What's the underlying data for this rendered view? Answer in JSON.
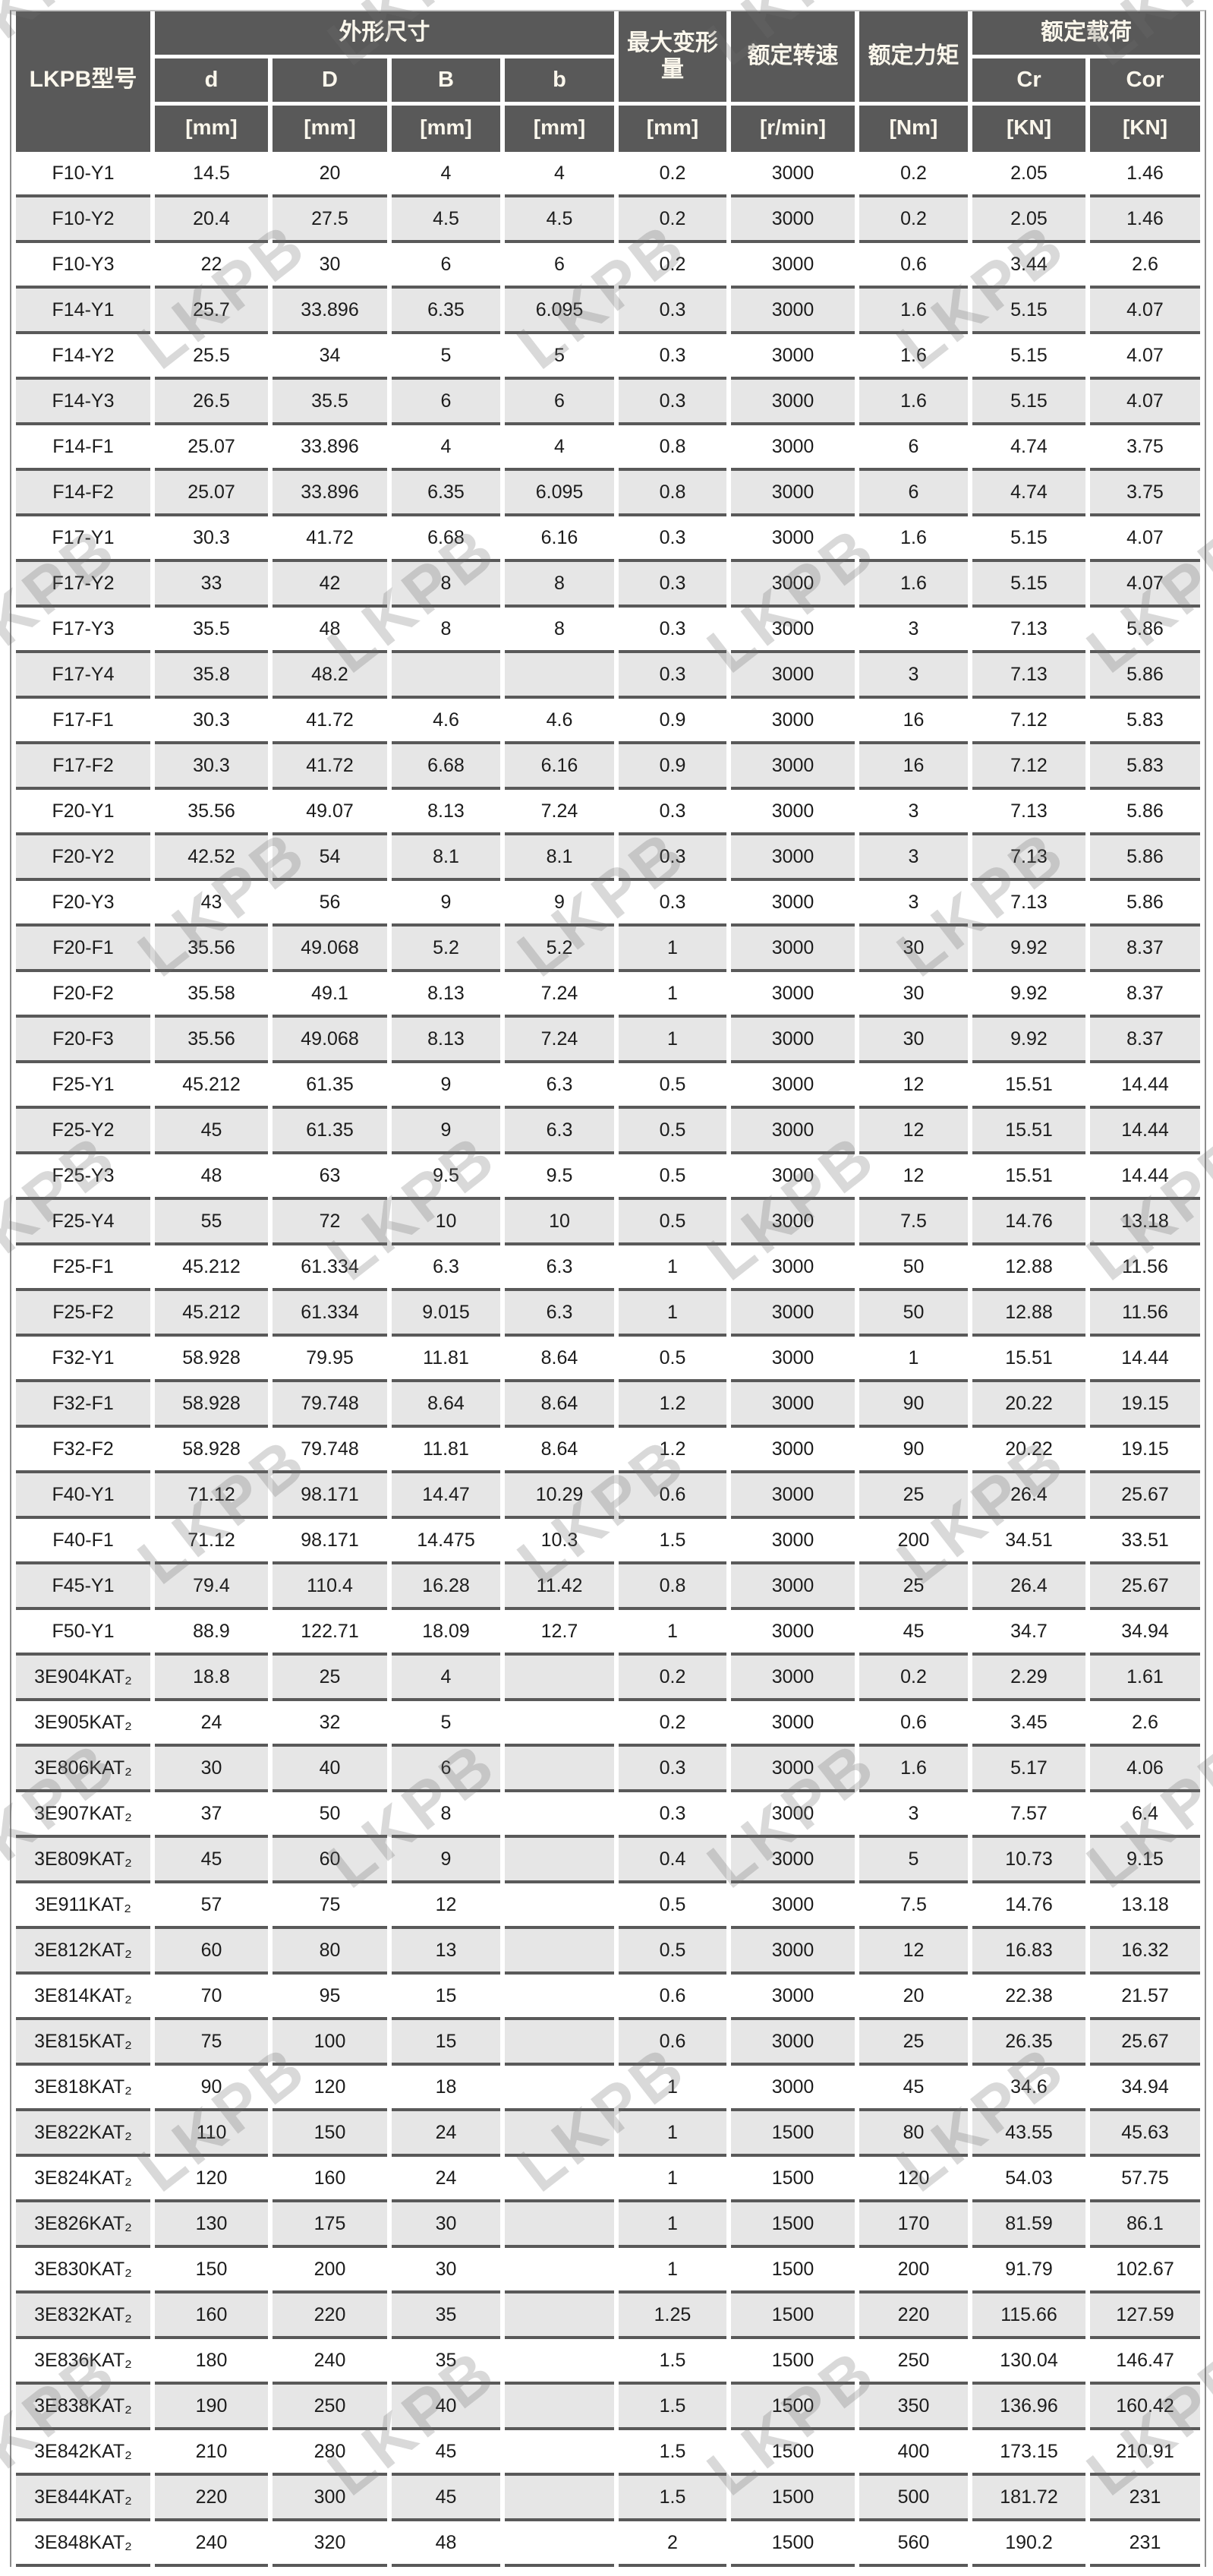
{
  "watermark": {
    "text": "LKPB"
  },
  "colors": {
    "header_bg": "#595959",
    "header_text": "#fbf7ec",
    "row_stripe": "#e6e6e6",
    "row_border": "#595959",
    "body_text": "#1c1c1c"
  },
  "table": {
    "header": {
      "model_col": "LKPB型号",
      "dim_group": "外形尺寸",
      "dim_cols": [
        "d",
        "D",
        "B",
        "b"
      ],
      "max_deform": "最大变形量",
      "rated_speed": "额定转速",
      "rated_torque": "额定力矩",
      "load_group": "额定载荷",
      "load_cols": [
        "Cr",
        "Cor"
      ],
      "units": [
        "[mm]",
        "[mm]",
        "[mm]",
        "[mm]",
        "[mm]",
        "[r/min]",
        "[Nm]",
        "[KN]",
        "[KN]"
      ]
    },
    "rows": [
      [
        "F10-Y1",
        "14.5",
        "20",
        "4",
        "4",
        "0.2",
        "3000",
        "0.2",
        "2.05",
        "1.46"
      ],
      [
        "F10-Y2",
        "20.4",
        "27.5",
        "4.5",
        "4.5",
        "0.2",
        "3000",
        "0.2",
        "2.05",
        "1.46"
      ],
      [
        "F10-Y3",
        "22",
        "30",
        "6",
        "6",
        "0.2",
        "3000",
        "0.6",
        "3.44",
        "2.6"
      ],
      [
        "F14-Y1",
        "25.7",
        "33.896",
        "6.35",
        "6.095",
        "0.3",
        "3000",
        "1.6",
        "5.15",
        "4.07"
      ],
      [
        "F14-Y2",
        "25.5",
        "34",
        "5",
        "5",
        "0.3",
        "3000",
        "1.6",
        "5.15",
        "4.07"
      ],
      [
        "F14-Y3",
        "26.5",
        "35.5",
        "6",
        "6",
        "0.3",
        "3000",
        "1.6",
        "5.15",
        "4.07"
      ],
      [
        "F14-F1",
        "25.07",
        "33.896",
        "4",
        "4",
        "0.8",
        "3000",
        "6",
        "4.74",
        "3.75"
      ],
      [
        "F14-F2",
        "25.07",
        "33.896",
        "6.35",
        "6.095",
        "0.8",
        "3000",
        "6",
        "4.74",
        "3.75"
      ],
      [
        "F17-Y1",
        "30.3",
        "41.72",
        "6.68",
        "6.16",
        "0.3",
        "3000",
        "1.6",
        "5.15",
        "4.07"
      ],
      [
        "F17-Y2",
        "33",
        "42",
        "8",
        "8",
        "0.3",
        "3000",
        "1.6",
        "5.15",
        "4.07"
      ],
      [
        "F17-Y3",
        "35.5",
        "48",
        "8",
        "8",
        "0.3",
        "3000",
        "3",
        "7.13",
        "5.86"
      ],
      [
        "F17-Y4",
        "35.8",
        "48.2",
        "",
        "",
        "0.3",
        "3000",
        "3",
        "7.13",
        "5.86"
      ],
      [
        "F17-F1",
        "30.3",
        "41.72",
        "4.6",
        "4.6",
        "0.9",
        "3000",
        "16",
        "7.12",
        "5.83"
      ],
      [
        "F17-F2",
        "30.3",
        "41.72",
        "6.68",
        "6.16",
        "0.9",
        "3000",
        "16",
        "7.12",
        "5.83"
      ],
      [
        "F20-Y1",
        "35.56",
        "49.07",
        "8.13",
        "7.24",
        "0.3",
        "3000",
        "3",
        "7.13",
        "5.86"
      ],
      [
        "F20-Y2",
        "42.52",
        "54",
        "8.1",
        "8.1",
        "0.3",
        "3000",
        "3",
        "7.13",
        "5.86"
      ],
      [
        "F20-Y3",
        "43",
        "56",
        "9",
        "9",
        "0.3",
        "3000",
        "3",
        "7.13",
        "5.86"
      ],
      [
        "F20-F1",
        "35.56",
        "49.068",
        "5.2",
        "5.2",
        "1",
        "3000",
        "30",
        "9.92",
        "8.37"
      ],
      [
        "F20-F2",
        "35.58",
        "49.1",
        "8.13",
        "7.24",
        "1",
        "3000",
        "30",
        "9.92",
        "8.37"
      ],
      [
        "F20-F3",
        "35.56",
        "49.068",
        "8.13",
        "7.24",
        "1",
        "3000",
        "30",
        "9.92",
        "8.37"
      ],
      [
        "F25-Y1",
        "45.212",
        "61.35",
        "9",
        "6.3",
        "0.5",
        "3000",
        "12",
        "15.51",
        "14.44"
      ],
      [
        "F25-Y2",
        "45",
        "61.35",
        "9",
        "6.3",
        "0.5",
        "3000",
        "12",
        "15.51",
        "14.44"
      ],
      [
        "F25-Y3",
        "48",
        "63",
        "9.5",
        "9.5",
        "0.5",
        "3000",
        "12",
        "15.51",
        "14.44"
      ],
      [
        "F25-Y4",
        "55",
        "72",
        "10",
        "10",
        "0.5",
        "3000",
        "7.5",
        "14.76",
        "13.18"
      ],
      [
        "F25-F1",
        "45.212",
        "61.334",
        "6.3",
        "6.3",
        "1",
        "3000",
        "50",
        "12.88",
        "11.56"
      ],
      [
        "F25-F2",
        "45.212",
        "61.334",
        "9.015",
        "6.3",
        "1",
        "3000",
        "50",
        "12.88",
        "11.56"
      ],
      [
        "F32-Y1",
        "58.928",
        "79.95",
        "11.81",
        "8.64",
        "0.5",
        "3000",
        "1",
        "15.51",
        "14.44"
      ],
      [
        "F32-F1",
        "58.928",
        "79.748",
        "8.64",
        "8.64",
        "1.2",
        "3000",
        "90",
        "20.22",
        "19.15"
      ],
      [
        "F32-F2",
        "58.928",
        "79.748",
        "11.81",
        "8.64",
        "1.2",
        "3000",
        "90",
        "20.22",
        "19.15"
      ],
      [
        "F40-Y1",
        "71.12",
        "98.171",
        "14.47",
        "10.29",
        "0.6",
        "3000",
        "25",
        "26.4",
        "25.67"
      ],
      [
        "F40-F1",
        "71.12",
        "98.171",
        "14.475",
        "10.3",
        "1.5",
        "3000",
        "200",
        "34.51",
        "33.51"
      ],
      [
        "F45-Y1",
        "79.4",
        "110.4",
        "16.28",
        "11.42",
        "0.8",
        "3000",
        "25",
        "26.4",
        "25.67"
      ],
      [
        "F50-Y1",
        "88.9",
        "122.71",
        "18.09",
        "12.7",
        "1",
        "3000",
        "45",
        "34.7",
        "34.94"
      ],
      [
        "3E904KAT₂",
        "18.8",
        "25",
        "4",
        "",
        "0.2",
        "3000",
        "0.2",
        "2.29",
        "1.61"
      ],
      [
        "3E905KAT₂",
        "24",
        "32",
        "5",
        "",
        "0.2",
        "3000",
        "0.6",
        "3.45",
        "2.6"
      ],
      [
        "3E806KAT₂",
        "30",
        "40",
        "6",
        "",
        "0.3",
        "3000",
        "1.6",
        "5.17",
        "4.06"
      ],
      [
        "3E907KAT₂",
        "37",
        "50",
        "8",
        "",
        "0.3",
        "3000",
        "3",
        "7.57",
        "6.4"
      ],
      [
        "3E809KAT₂",
        "45",
        "60",
        "9",
        "",
        "0.4",
        "3000",
        "5",
        "10.73",
        "9.15"
      ],
      [
        "3E911KAT₂",
        "57",
        "75",
        "12",
        "",
        "0.5",
        "3000",
        "7.5",
        "14.76",
        "13.18"
      ],
      [
        "3E812KAT₂",
        "60",
        "80",
        "13",
        "",
        "0.5",
        "3000",
        "12",
        "16.83",
        "16.32"
      ],
      [
        "3E814KAT₂",
        "70",
        "95",
        "15",
        "",
        "0.6",
        "3000",
        "20",
        "22.38",
        "21.57"
      ],
      [
        "3E815KAT₂",
        "75",
        "100",
        "15",
        "",
        "0.6",
        "3000",
        "25",
        "26.35",
        "25.67"
      ],
      [
        "3E818KAT₂",
        "90",
        "120",
        "18",
        "",
        "1",
        "3000",
        "45",
        "34.6",
        "34.94"
      ],
      [
        "3E822KAT₂",
        "110",
        "150",
        "24",
        "",
        "1",
        "1500",
        "80",
        "43.55",
        "45.63"
      ],
      [
        "3E824KAT₂",
        "120",
        "160",
        "24",
        "",
        "1",
        "1500",
        "120",
        "54.03",
        "57.75"
      ],
      [
        "3E826KAT₂",
        "130",
        "175",
        "30",
        "",
        "1",
        "1500",
        "170",
        "81.59",
        "86.1"
      ],
      [
        "3E830KAT₂",
        "150",
        "200",
        "30",
        "",
        "1",
        "1500",
        "200",
        "91.79",
        "102.67"
      ],
      [
        "3E832KAT₂",
        "160",
        "220",
        "35",
        "",
        "1.25",
        "1500",
        "220",
        "115.66",
        "127.59"
      ],
      [
        "3E836KAT₂",
        "180",
        "240",
        "35",
        "",
        "1.5",
        "1500",
        "250",
        "130.04",
        "146.47"
      ],
      [
        "3E838KAT₂",
        "190",
        "250",
        "40",
        "",
        "1.5",
        "1500",
        "350",
        "136.96",
        "160.42"
      ],
      [
        "3E842KAT₂",
        "210",
        "280",
        "45",
        "",
        "1.5",
        "1500",
        "400",
        "173.15",
        "210.91"
      ],
      [
        "3E844KAT₂",
        "220",
        "300",
        "45",
        "",
        "1.5",
        "1500",
        "500",
        "181.72",
        "231"
      ],
      [
        "3E848KAT₂",
        "240",
        "320",
        "48",
        "",
        "2",
        "1500",
        "560",
        "190.2",
        "231"
      ]
    ]
  }
}
